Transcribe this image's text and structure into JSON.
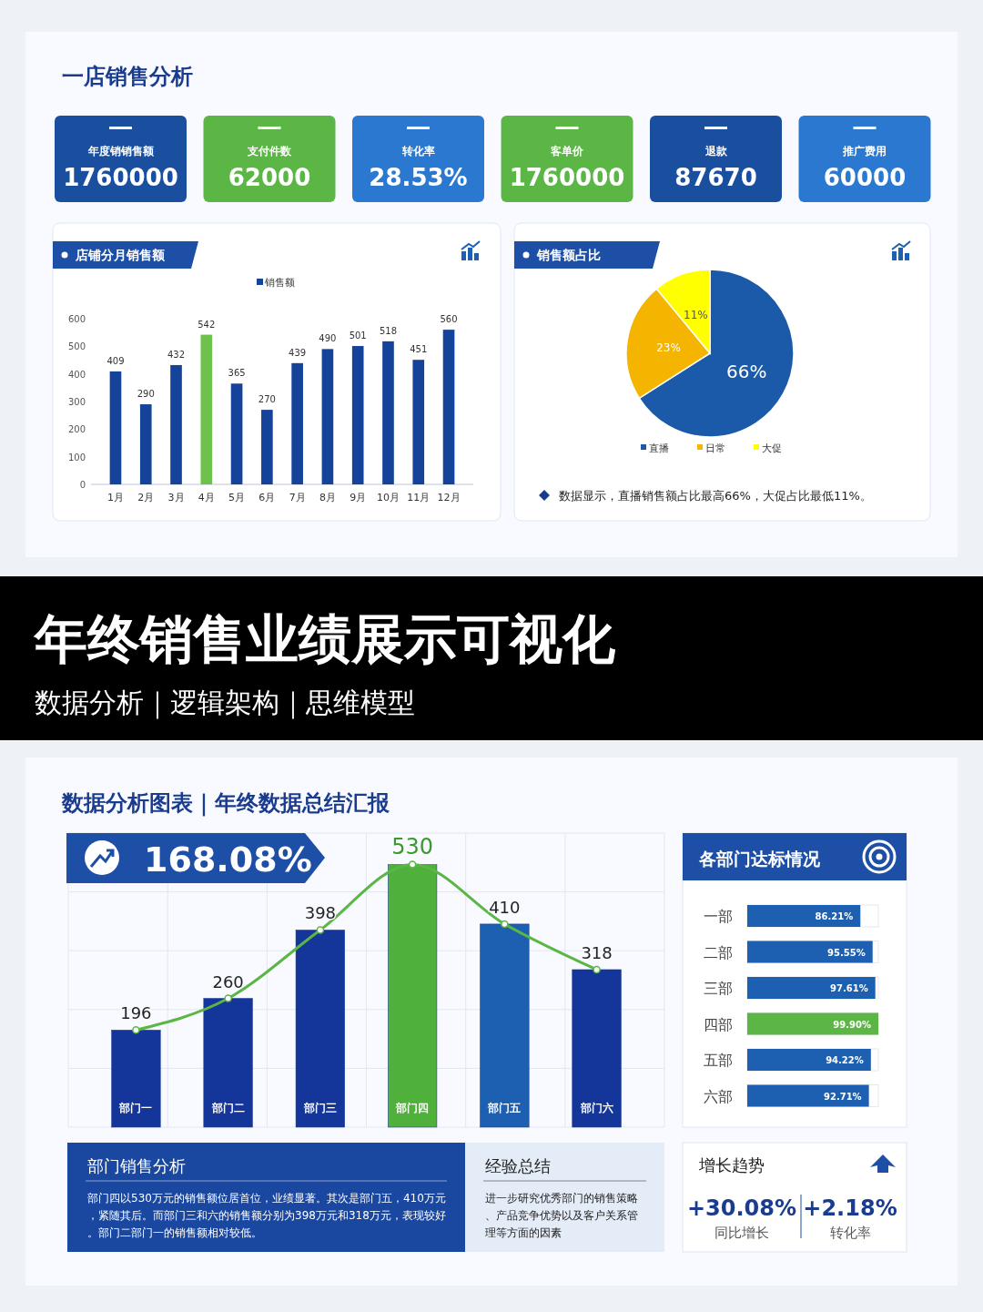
{
  "chart_data": [
    {
      "type": "other",
      "title": "一店销售分析",
      "categories": [
        "年度销销售额",
        "支付件数",
        "转化率",
        "客单价",
        "退款",
        "推广费用"
      ],
      "value_labels": [
        "1760000",
        "62000",
        "28.53%",
        "1760000",
        "87670",
        "60000"
      ],
      "colors": [
        "#1a4fa0",
        "#5cb646",
        "#2a78d0",
        "#5cb646",
        "#1a4fa0",
        "#2a78d0"
      ]
    },
    {
      "type": "bar",
      "title": "店铺分月销售额",
      "categories": [
        "1月",
        "2月",
        "3月",
        "4月",
        "5月",
        "6月",
        "7月",
        "8月",
        "9月",
        "10月",
        "11月",
        "12月"
      ],
      "series": [
        {
          "name": "销售额",
          "color": "#15439a",
          "colors": [
            "#15439a",
            "#15439a",
            "#15439a",
            "#6cc24a",
            "#15439a",
            "#15439a",
            "#15439a",
            "#15439a",
            "#15439a",
            "#15439a",
            "#15439a",
            "#15439a"
          ],
          "values": [
            409,
            290,
            432,
            542,
            365,
            270,
            439,
            490,
            501,
            518,
            451,
            560
          ]
        }
      ],
      "ylim": [
        0,
        600
      ],
      "yticks": [
        0,
        100,
        200,
        300,
        400,
        500,
        600
      ],
      "data_labels": true,
      "legend": "top"
    },
    {
      "type": "pie",
      "title": "销售额占比",
      "categories": [
        "直播",
        "日常",
        "大促"
      ],
      "values": [
        66,
        23,
        11
      ],
      "colors": [
        "#1a5aa8",
        "#f5b400",
        "#ffff00"
      ],
      "value_labels": [
        "66%",
        "23%",
        "11%"
      ],
      "legend": "bottom",
      "annotations": [
        "数据显示，直播销售额占比最高66%，大促占比最低11%。"
      ]
    },
    {
      "type": "other",
      "title": "年终销售业绩展示可视化",
      "subtitle": "数据分析｜逻辑架构｜思维模型"
    },
    {
      "type": "bar",
      "title": "数据分析图表｜年终数据总结汇报",
      "categories": [
        "部门一",
        "部门二",
        "部门三",
        "部门四",
        "部门五",
        "部门六"
      ],
      "series": [
        {
          "type": "bar",
          "color": "#14369a",
          "colors": [
            "#14369a",
            "#14369a",
            "#14369a",
            "#4fb03c",
            "#1d5fb0",
            "#14369a"
          ],
          "values": [
            196,
            260,
            398,
            530,
            410,
            318
          ]
        },
        {
          "type": "line",
          "color": "#5cb646",
          "values": [
            196,
            260,
            398,
            530,
            410,
            318
          ],
          "value_labels": [
            "196",
            "260",
            "398",
            "530",
            "410",
            "318"
          ]
        }
      ],
      "marker": "circle",
      "grid": true,
      "annotations": [
        "168.08%"
      ]
    },
    {
      "type": "bar",
      "orientation": "horizontal",
      "title": "各部门达标情况",
      "categories": [
        "一部",
        "二部",
        "三部",
        "四部",
        "五部",
        "六部"
      ],
      "values": [
        86.21,
        95.55,
        97.61,
        99.9,
        94.22,
        92.71
      ],
      "value_labels": [
        "86.21%",
        "95.55%",
        "97.61%",
        "99.90%",
        "94.22%",
        "92.71%"
      ],
      "colors": [
        "#1d5fb0",
        "#1d5fb0",
        "#1d5fb0",
        "#5cb646",
        "#1d5fb0",
        "#1d5fb0"
      ]
    },
    {
      "type": "other",
      "title": "部门销售分析",
      "annotations": [
        "部门四以530万元的销售额位居首位，业绩显著。其次是部门五，410万元，紧随其后。而部门三和六的销售额分别为398万元和318万元，表现较好。部门二部门一的销售额相对较低。"
      ]
    },
    {
      "type": "other",
      "title": "经验总结",
      "annotations": [
        "进一步研究优秀部门的销售策略、产品竞争优势以及客户关系管理等方面的因素"
      ]
    },
    {
      "type": "other",
      "title": "增长趋势",
      "categories": [
        "同比增长",
        "转化率"
      ],
      "value_labels": [
        "+30.08%",
        "+2.18%"
      ]
    }
  ]
}
